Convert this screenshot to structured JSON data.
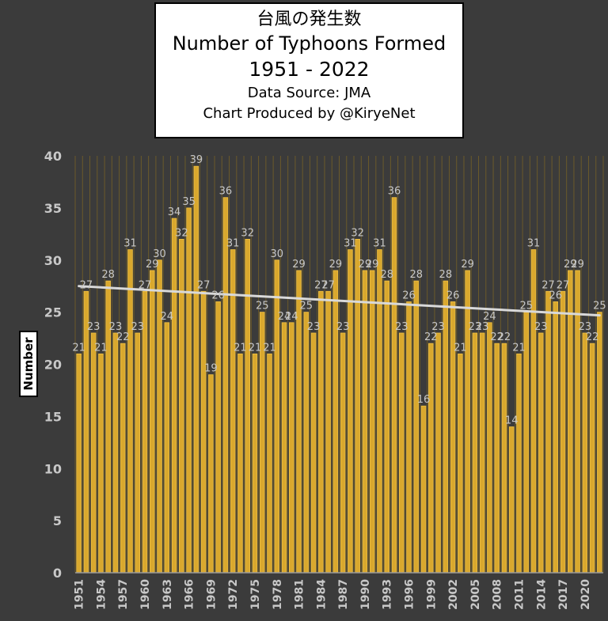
{
  "title_lines": {
    "jp": "台風の発生数",
    "en": "Number of Typhoons Formed",
    "years": "1951 - 2022",
    "source": "Data Source: JMA",
    "credit": "Chart Produced by @KiryeNet"
  },
  "colors": {
    "background": "#3b3b3b",
    "bar_fill": "#d9a82e",
    "bar_edge": "#f0c040",
    "trend": "#d9d9d9",
    "text": "#c8c8c8",
    "grid": "#6b5a2a"
  },
  "chart_data": {
    "type": "bar",
    "ylabel": "Number",
    "xlabel": "",
    "ylim": [
      0,
      40
    ],
    "yticks": [
      0,
      5,
      10,
      15,
      20,
      25,
      30,
      35,
      40
    ],
    "x_tick_labels": [
      "1951",
      "1954",
      "1957",
      "1960",
      "1963",
      "1966",
      "1969",
      "1972",
      "1975",
      "1978",
      "1981",
      "1984",
      "1987",
      "1990",
      "1993",
      "1996",
      "1999",
      "2002",
      "2005",
      "2008",
      "2011",
      "2014",
      "2017",
      "2020"
    ],
    "categories": [
      1951,
      1952,
      1953,
      1954,
      1955,
      1956,
      1957,
      1958,
      1959,
      1960,
      1961,
      1962,
      1963,
      1964,
      1965,
      1966,
      1967,
      1968,
      1969,
      1970,
      1971,
      1972,
      1973,
      1974,
      1975,
      1976,
      1977,
      1978,
      1979,
      1980,
      1981,
      1982,
      1983,
      1984,
      1985,
      1986,
      1987,
      1988,
      1989,
      1990,
      1991,
      1992,
      1993,
      1994,
      1995,
      1996,
      1997,
      1998,
      1999,
      2000,
      2001,
      2002,
      2003,
      2004,
      2005,
      2006,
      2007,
      2008,
      2009,
      2010,
      2011,
      2012,
      2013,
      2014,
      2015,
      2016,
      2017,
      2018,
      2019,
      2020,
      2021,
      2022
    ],
    "values": [
      21,
      27,
      23,
      21,
      28,
      23,
      22,
      31,
      23,
      27,
      29,
      30,
      24,
      34,
      32,
      35,
      39,
      27,
      19,
      26,
      36,
      31,
      21,
      32,
      21,
      25,
      21,
      30,
      24,
      24,
      29,
      25,
      23,
      27,
      27,
      29,
      23,
      31,
      32,
      29,
      29,
      31,
      28,
      36,
      23,
      26,
      28,
      16,
      22,
      23,
      28,
      26,
      21,
      29,
      23,
      23,
      24,
      22,
      22,
      14,
      21,
      25,
      31,
      23,
      27,
      26,
      27,
      29,
      29,
      23,
      22,
      25
    ],
    "trend": {
      "start": 27.5,
      "end": 24.7
    }
  }
}
